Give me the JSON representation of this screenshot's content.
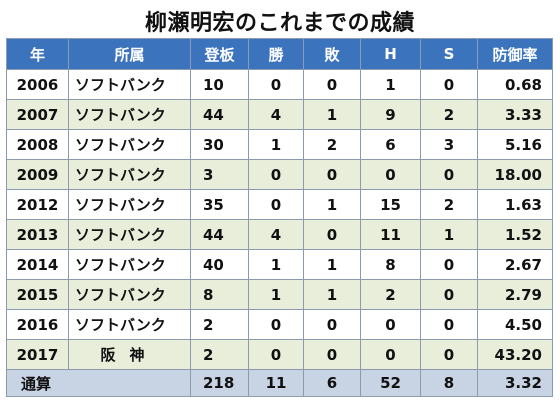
{
  "title": "柳瀬明宏のこれまでの成績",
  "columns": [
    "年",
    "所属",
    "登板",
    "勝",
    "敗",
    "H",
    "S",
    "防御率"
  ],
  "rows": [
    {
      "year": "2006",
      "team": "ソフトバンク",
      "games": "10",
      "wins": "0",
      "losses": "0",
      "holds": "1",
      "saves": "0",
      "era": "0.68"
    },
    {
      "year": "2007",
      "team": "ソフトバンク",
      "games": "44",
      "wins": "4",
      "losses": "1",
      "holds": "9",
      "saves": "2",
      "era": "3.33"
    },
    {
      "year": "2008",
      "team": "ソフトバンク",
      "games": "30",
      "wins": "1",
      "losses": "2",
      "holds": "6",
      "saves": "3",
      "era": "5.16"
    },
    {
      "year": "2009",
      "team": "ソフトバンク",
      "games": "3",
      "wins": "0",
      "losses": "0",
      "holds": "0",
      "saves": "0",
      "era": "18.00"
    },
    {
      "year": "2012",
      "team": "ソフトバンク",
      "games": "35",
      "wins": "0",
      "losses": "1",
      "holds": "15",
      "saves": "2",
      "era": "1.63"
    },
    {
      "year": "2013",
      "team": "ソフトバンク",
      "games": "44",
      "wins": "4",
      "losses": "0",
      "holds": "11",
      "saves": "1",
      "era": "1.52"
    },
    {
      "year": "2014",
      "team": "ソフトバンク",
      "games": "40",
      "wins": "1",
      "losses": "1",
      "holds": "8",
      "saves": "0",
      "era": "2.67"
    },
    {
      "year": "2015",
      "team": "ソフトバンク",
      "games": "8",
      "wins": "1",
      "losses": "1",
      "holds": "2",
      "saves": "0",
      "era": "2.79"
    },
    {
      "year": "2016",
      "team": "ソフトバンク",
      "games": "2",
      "wins": "0",
      "losses": "0",
      "holds": "0",
      "saves": "0",
      "era": "4.50"
    },
    {
      "year": "2017",
      "team": "阪神",
      "games": "2",
      "wins": "0",
      "losses": "0",
      "holds": "0",
      "saves": "0",
      "era": "43.20"
    }
  ],
  "total": {
    "label": "通算",
    "games": "218",
    "wins": "11",
    "losses": "6",
    "holds": "52",
    "saves": "8",
    "era": "3.32"
  },
  "colors": {
    "header_bg": "#3b73bd",
    "header_text": "#ffffff",
    "row_alt_bg": "#e9eedb",
    "total_bg": "#c8d3e3",
    "border": "#8c9ab0"
  }
}
